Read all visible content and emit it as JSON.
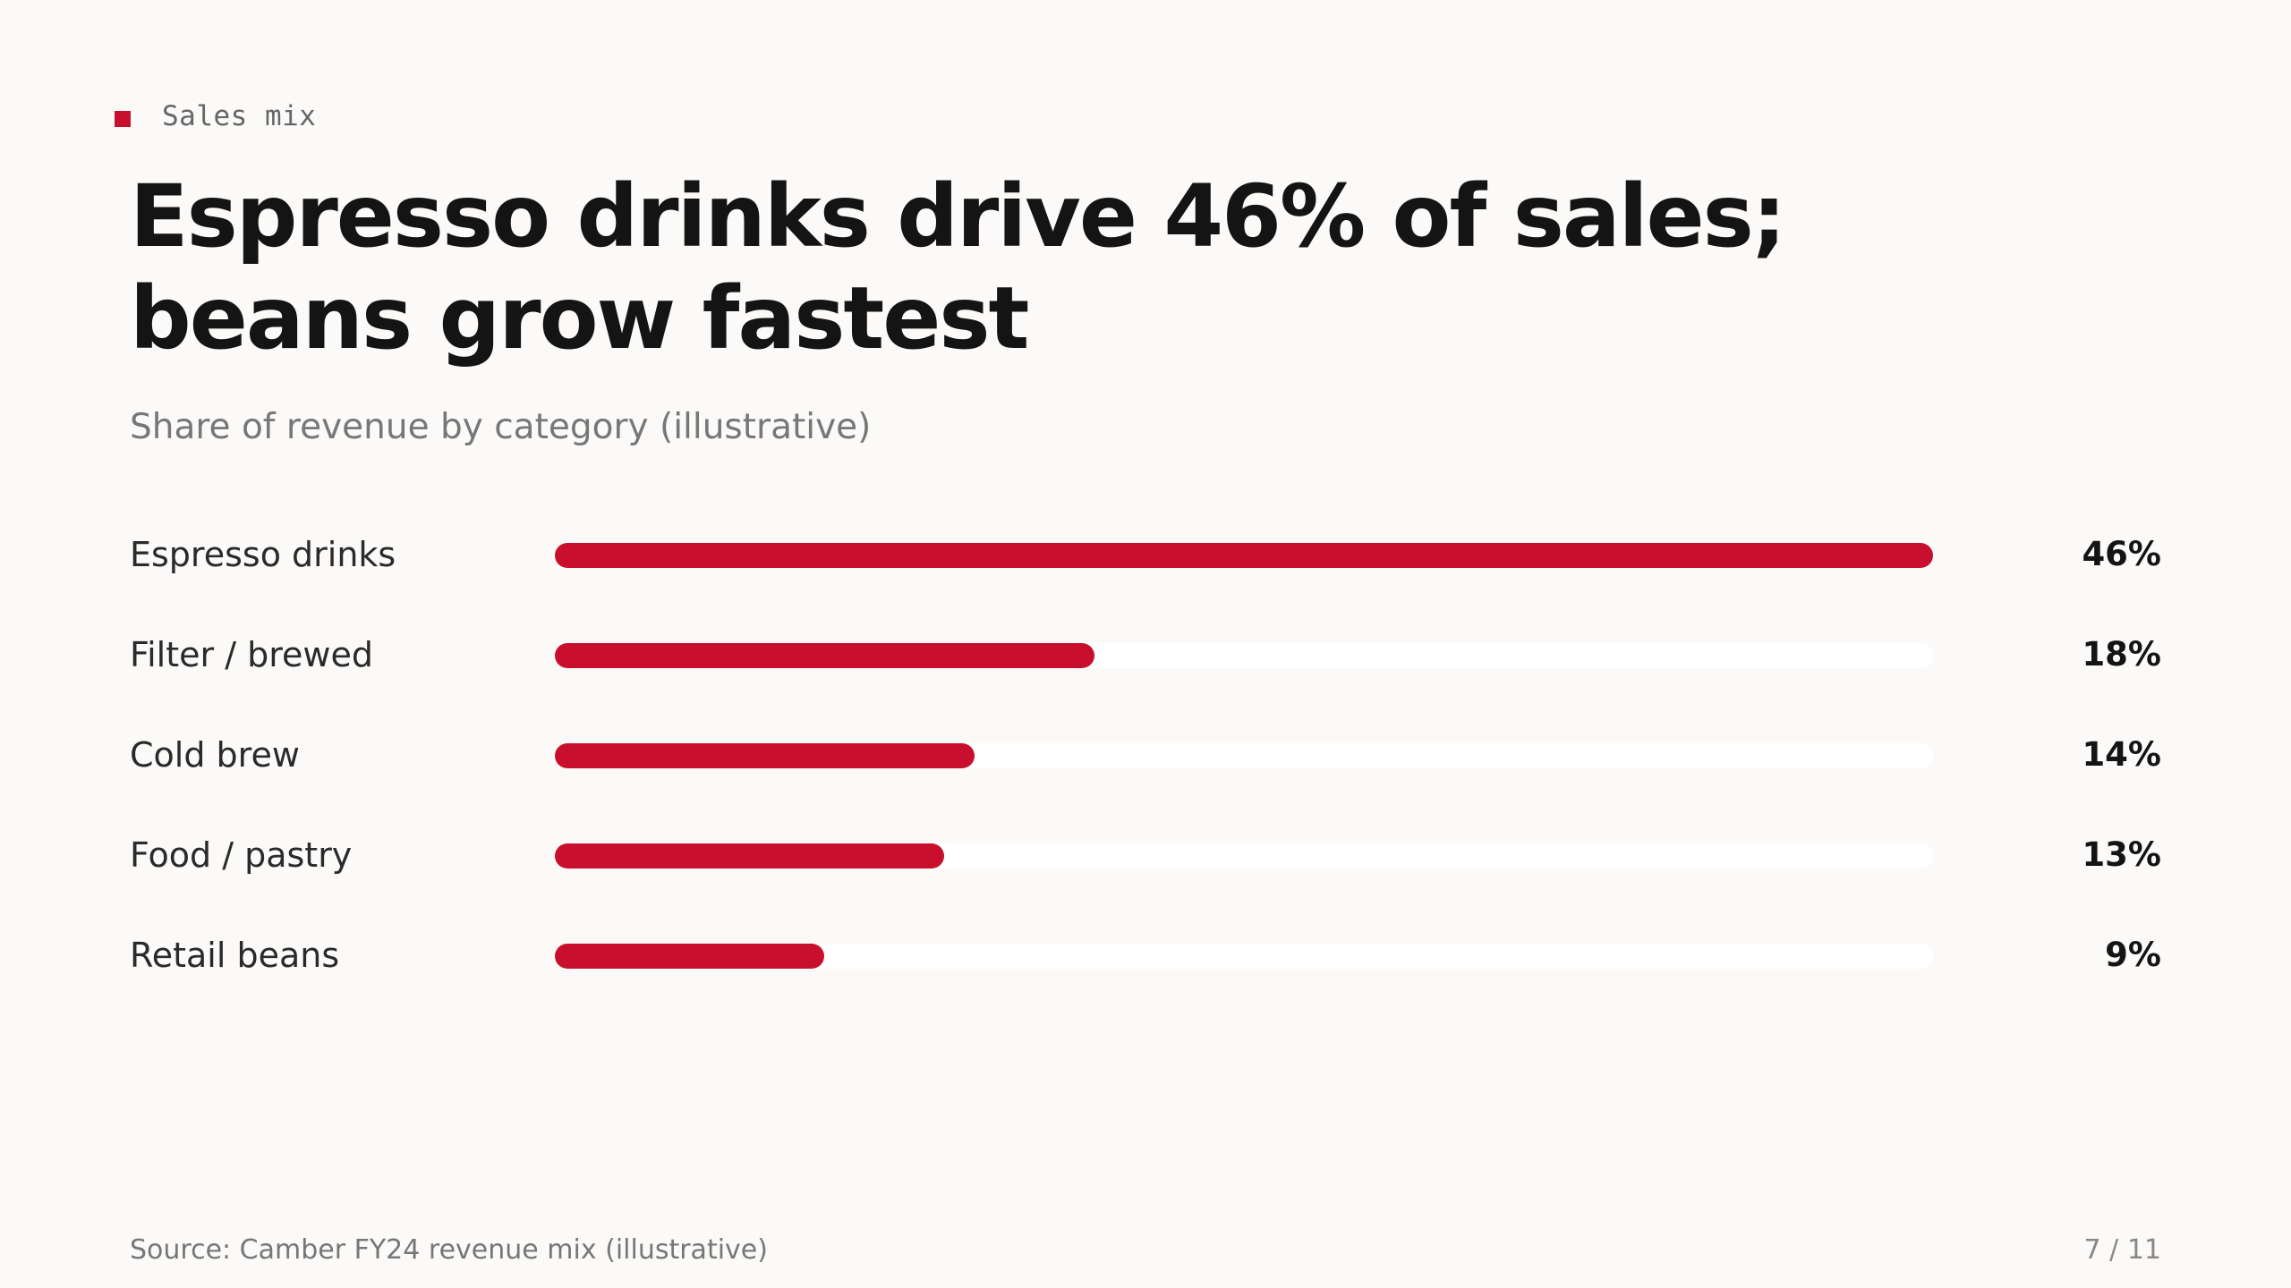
{
  "slide": {
    "kicker": "Sales mix",
    "title": "Espresso drinks drive 46% of sales; beans grow fastest",
    "subtitle": "Share of revenue by category (illustrative)",
    "source": "Source: Camber FY24 revenue mix (illustrative)",
    "page": "7 / 11"
  },
  "colors": {
    "accent": "#c8102e",
    "background": "#fbfaf8",
    "track": "#ffffff"
  },
  "chart_data": {
    "type": "bar",
    "orientation": "horizontal",
    "title": "Espresso drinks drive 46% of sales; beans grow fastest",
    "subtitle": "Share of revenue by category (illustrative)",
    "categories": [
      "Espresso drinks",
      "Filter / brewed",
      "Cold brew",
      "Food / pastry",
      "Retail beans"
    ],
    "values": [
      46,
      18,
      14,
      13,
      9
    ],
    "value_labels": [
      "46%",
      "18%",
      "14%",
      "13%",
      "9%"
    ],
    "unit": "%",
    "xlim": [
      0,
      46
    ],
    "grid": false,
    "legend": "none"
  }
}
